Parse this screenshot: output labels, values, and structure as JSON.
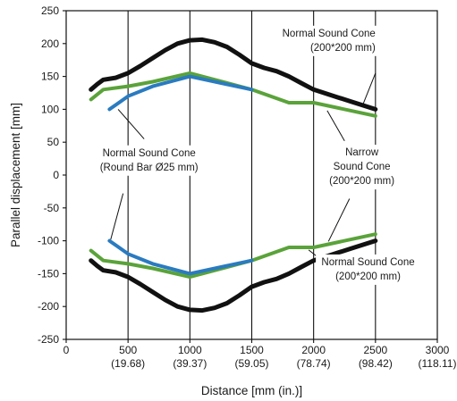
{
  "chart_data": {
    "type": "line",
    "title": "",
    "xlabel": "Distance [mm (in.)]",
    "ylabel": "Parallel displacement [mm]",
    "xlim": [
      0,
      3000
    ],
    "ylim": [
      -250,
      250
    ],
    "x_ticks": [
      {
        "value": 0,
        "label": "0",
        "sublabel": ""
      },
      {
        "value": 500,
        "label": "500",
        "sublabel": "(19.68)"
      },
      {
        "value": 1000,
        "label": "1000",
        "sublabel": "(39.37)"
      },
      {
        "value": 1500,
        "label": "1500",
        "sublabel": "(59.05)"
      },
      {
        "value": 2000,
        "label": "2000",
        "sublabel": "(78.74)"
      },
      {
        "value": 2500,
        "label": "2500",
        "sublabel": "(98.42)"
      },
      {
        "value": 3000,
        "label": "3000",
        "sublabel": "(118.11)"
      }
    ],
    "y_ticks": [
      250,
      200,
      150,
      100,
      50,
      0,
      -50,
      -100,
      -150,
      -200,
      -250
    ],
    "grid": "vertical",
    "series": [
      {
        "color": "#111111",
        "points": [
          [
            200,
            130
          ],
          [
            250,
            138
          ],
          [
            300,
            145
          ],
          [
            400,
            148
          ],
          [
            500,
            155
          ],
          [
            600,
            166
          ],
          [
            700,
            178
          ],
          [
            800,
            190
          ],
          [
            900,
            200
          ],
          [
            1000,
            205
          ],
          [
            1100,
            206
          ],
          [
            1200,
            202
          ],
          [
            1300,
            195
          ],
          [
            1400,
            183
          ],
          [
            1500,
            170
          ],
          [
            1600,
            163
          ],
          [
            1700,
            158
          ],
          [
            1800,
            150
          ],
          [
            1900,
            140
          ],
          [
            2000,
            130
          ],
          [
            2100,
            124
          ],
          [
            2200,
            118
          ],
          [
            2300,
            112
          ],
          [
            2400,
            106
          ],
          [
            2500,
            100
          ]
        ]
      },
      {
        "color": "#111111",
        "points": [
          [
            200,
            -130
          ],
          [
            250,
            -138
          ],
          [
            300,
            -145
          ],
          [
            400,
            -148
          ],
          [
            500,
            -155
          ],
          [
            600,
            -166
          ],
          [
            700,
            -178
          ],
          [
            800,
            -190
          ],
          [
            900,
            -200
          ],
          [
            1000,
            -205
          ],
          [
            1100,
            -206
          ],
          [
            1200,
            -202
          ],
          [
            1300,
            -195
          ],
          [
            1400,
            -183
          ],
          [
            1500,
            -170
          ],
          [
            1600,
            -163
          ],
          [
            1700,
            -158
          ],
          [
            1800,
            -150
          ],
          [
            1900,
            -140
          ],
          [
            2000,
            -130
          ],
          [
            2100,
            -124
          ],
          [
            2200,
            -118
          ],
          [
            2300,
            -112
          ],
          [
            2400,
            -106
          ],
          [
            2500,
            -100
          ]
        ]
      },
      {
        "color": "#5aa33a",
        "points": [
          [
            200,
            115
          ],
          [
            300,
            130
          ],
          [
            500,
            135
          ],
          [
            700,
            142
          ],
          [
            1000,
            155
          ],
          [
            1500,
            130
          ],
          [
            1800,
            110
          ],
          [
            2000,
            110
          ],
          [
            2500,
            90
          ]
        ]
      },
      {
        "color": "#5aa33a",
        "points": [
          [
            200,
            -115
          ],
          [
            300,
            -130
          ],
          [
            500,
            -135
          ],
          [
            700,
            -142
          ],
          [
            1000,
            -155
          ],
          [
            1500,
            -130
          ],
          [
            1800,
            -110
          ],
          [
            2000,
            -110
          ],
          [
            2500,
            -90
          ]
        ]
      },
      {
        "color": "#2a7bc0",
        "points": [
          [
            350,
            100
          ],
          [
            500,
            120
          ],
          [
            700,
            135
          ],
          [
            1000,
            150
          ],
          [
            1500,
            130
          ]
        ]
      },
      {
        "color": "#2a7bc0",
        "points": [
          [
            350,
            -100
          ],
          [
            500,
            -120
          ],
          [
            700,
            -135
          ],
          [
            1000,
            -150
          ],
          [
            1500,
            -130
          ]
        ]
      }
    ],
    "annotations": [
      {
        "lines": [
          "Normal Sound Cone",
          "(200*200 mm)"
        ],
        "x": 2500,
        "y": 200,
        "anchor": "end",
        "pointers": [
          [
            2500,
            155,
            2400,
            108
          ]
        ]
      },
      {
        "lines": [
          "Narrow",
          "Sound Cone",
          "(200*200 mm)"
        ],
        "x": 2390,
        "y": 8,
        "anchor": "middle",
        "pointers": [
          [
            2250,
            52,
            2110,
            98
          ],
          [
            2290,
            -36,
            2120,
            -101
          ]
        ]
      },
      {
        "lines": [
          "Normal Sound Cone",
          "(Round Bar Ø25 mm)"
        ],
        "x": 670,
        "y": 18,
        "anchor": "middle",
        "pointers": [
          [
            630,
            55,
            420,
            100
          ],
          [
            460,
            -28,
            360,
            -98
          ]
        ]
      },
      {
        "lines": [
          "Normal Sound Cone",
          "(200*200 mm)"
        ],
        "x": 2440,
        "y": -148,
        "anchor": "middle",
        "pointers": [
          [
            2150,
            -142,
            1960,
            -114
          ]
        ]
      }
    ]
  }
}
